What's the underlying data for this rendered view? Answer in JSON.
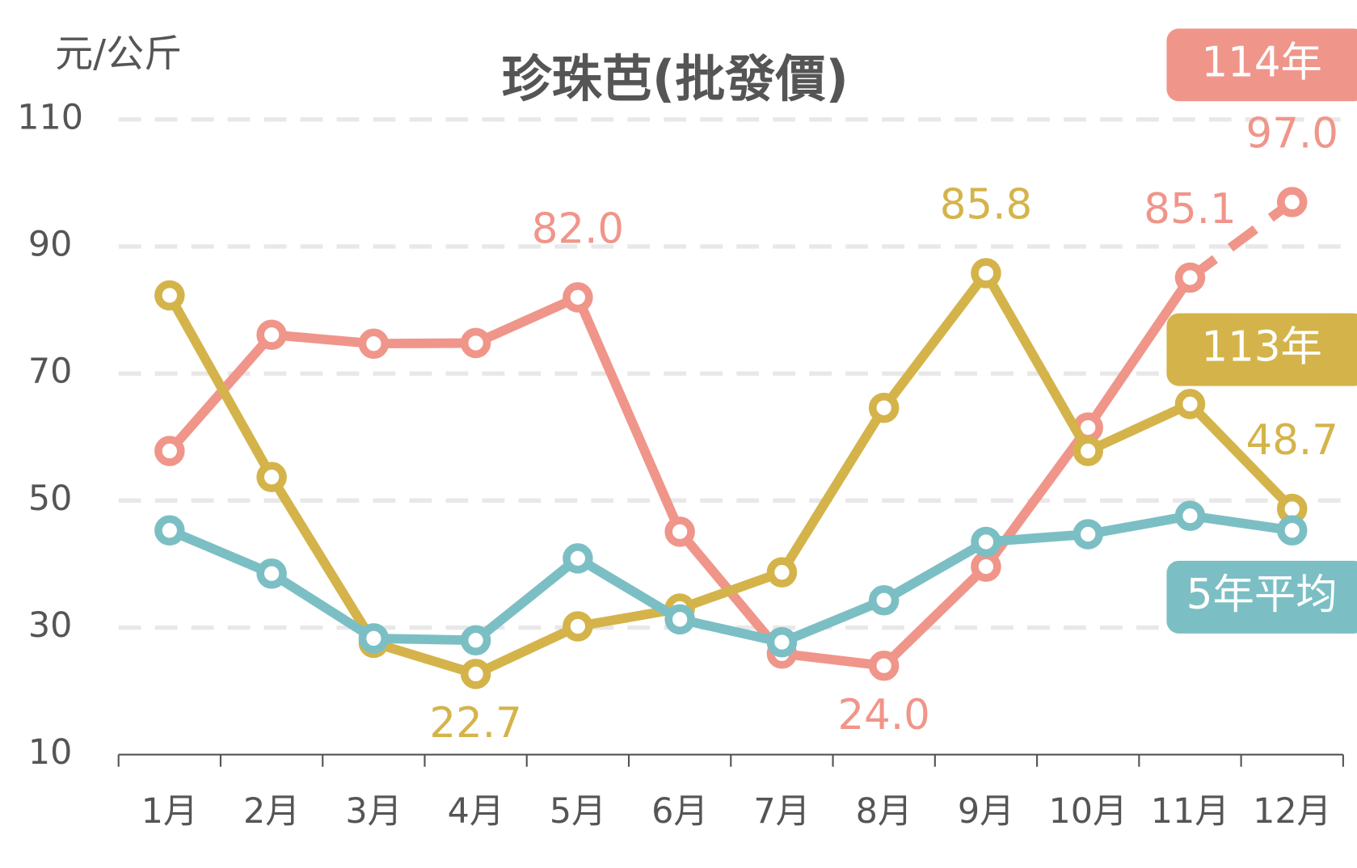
{
  "chart_data": {
    "type": "line",
    "title": "珍珠芭(批發價)",
    "y_label": "元/公斤",
    "categories": [
      "1月",
      "2月",
      "3月",
      "4月",
      "5月",
      "6月",
      "7月",
      "8月",
      "9月",
      "10月",
      "11月",
      "12月"
    ],
    "series": [
      {
        "name": "114年",
        "color": "#f0958a",
        "dash_last": true,
        "values": [
          57.8,
          76.1,
          74.7,
          74.8,
          82.0,
          45.1,
          25.9,
          24.0,
          39.6,
          61.5,
          85.1,
          97.0
        ],
        "value_labels": [
          null,
          null,
          null,
          null,
          "82.0",
          null,
          null,
          "24.0",
          null,
          null,
          "85.1",
          "97.0"
        ]
      },
      {
        "name": "113年",
        "color": "#d4b44a",
        "values": [
          82.3,
          53.7,
          27.6,
          22.7,
          30.2,
          33.0,
          38.7,
          64.6,
          85.8,
          57.8,
          65.2,
          48.7
        ],
        "value_labels": [
          null,
          null,
          null,
          "22.7",
          null,
          null,
          null,
          null,
          "85.8",
          null,
          null,
          "48.7"
        ]
      },
      {
        "name": "5年平均",
        "color": "#7bbfc4",
        "values": [
          45.3,
          38.5,
          28.3,
          28.0,
          40.9,
          31.3,
          27.7,
          34.3,
          43.5,
          44.7,
          47.6,
          45.3
        ]
      }
    ],
    "ylim": [
      10,
      110
    ],
    "yticks": [
      10,
      30,
      50,
      70,
      90,
      110
    ],
    "grid": true
  }
}
